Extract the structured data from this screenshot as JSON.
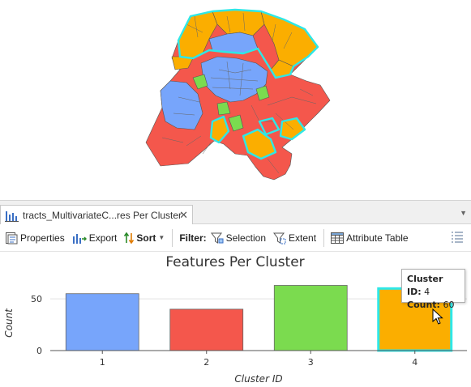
{
  "tab": {
    "label": "tracts_MultivariateC...res Per Cluster",
    "close": "✕",
    "menu": "▼"
  },
  "toolbar": {
    "properties": "Properties",
    "export": "Export",
    "sort": "Sort",
    "filter_label": "Filter:",
    "selection": "Selection",
    "extent": "Extent",
    "attribute_table": "Attribute Table"
  },
  "colors": {
    "c1": "#77a5fb",
    "c2": "#f4574c",
    "c3": "#7bdb4f",
    "c4": "#fbae00",
    "highlight": "#2ee7e7"
  },
  "chart_data": {
    "type": "bar",
    "title": "Features Per Cluster",
    "xlabel": "Cluster ID",
    "ylabel": "Count",
    "categories": [
      "1",
      "2",
      "3",
      "4"
    ],
    "values": [
      55,
      40,
      63,
      60
    ],
    "ylim": [
      0,
      72
    ],
    "yticks": [
      0,
      50
    ],
    "colors": [
      "#77a5fb",
      "#f4574c",
      "#7bdb4f",
      "#fbae00"
    ],
    "selected": "4",
    "grid": true
  },
  "tooltip": {
    "id_label": "Cluster ID:",
    "id_value": "4",
    "count_label": "Count:",
    "count_value": "60"
  }
}
